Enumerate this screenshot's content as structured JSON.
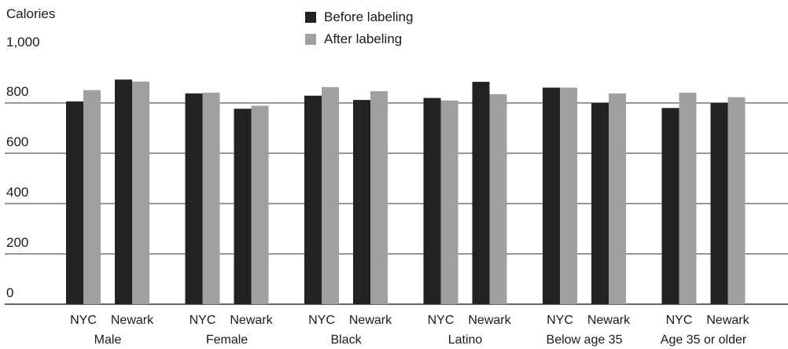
{
  "chart_data": {
    "type": "bar",
    "ylabel": "Calories",
    "ylim": [
      0,
      1000
    ],
    "y_ticks": [
      0,
      200,
      400,
      600,
      800
    ],
    "y_top_label": "1,000",
    "grid": true,
    "legend_position": "top-center",
    "groups": [
      {
        "label": "Male",
        "subcategories": [
          "NYC",
          "Newark"
        ]
      },
      {
        "label": "Female",
        "subcategories": [
          "NYC",
          "Newark"
        ]
      },
      {
        "label": "Black",
        "subcategories": [
          "NYC",
          "Newark"
        ]
      },
      {
        "label": "Latino",
        "subcategories": [
          "NYC",
          "Newark"
        ]
      },
      {
        "label": "Below age 35",
        "subcategories": [
          "NYC",
          "Newark"
        ]
      },
      {
        "label": "Age 35 or older",
        "subcategories": [
          "NYC",
          "Newark"
        ]
      }
    ],
    "series": [
      {
        "name": "Before labeling",
        "color": "#222222",
        "values": [
          806,
          893,
          838,
          777,
          829,
          812,
          820,
          884,
          861,
          800,
          780,
          800
        ]
      },
      {
        "name": "After labeling",
        "color": "#a0a0a0",
        "values": [
          851,
          885,
          841,
          789,
          863,
          847,
          810,
          835,
          861,
          838,
          841,
          823
        ]
      }
    ]
  }
}
